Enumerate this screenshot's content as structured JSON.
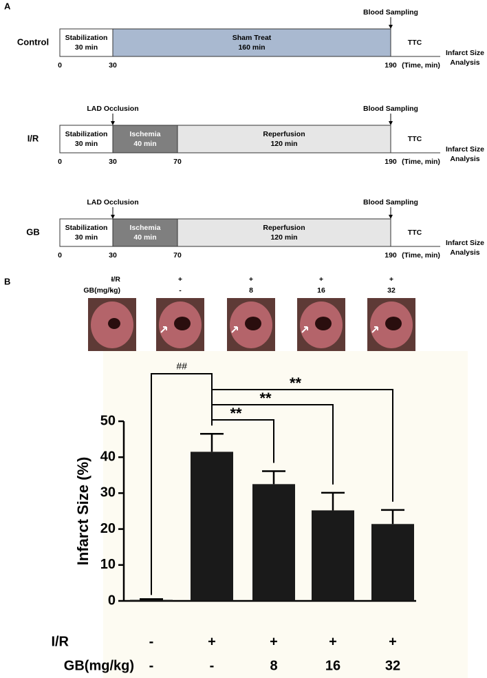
{
  "panel_a": {
    "label": "A",
    "rows": [
      {
        "label": "Control",
        "sampling": "Blood Sampling",
        "end": "TTC",
        "analysis": [
          "Infarct Size",
          "Analysis"
        ],
        "unit": "(Time, min)",
        "ticks": [
          0,
          30,
          190
        ],
        "segments": [
          {
            "name": "Stabilization",
            "duration": "30 min",
            "color": "#ffffff"
          },
          {
            "name": "Sham Treat",
            "duration": "160 min",
            "color": "#a9b9d0"
          }
        ]
      },
      {
        "label": "I/R",
        "occlusion": "LAD Occlusion",
        "sampling": "Blood Sampling",
        "end": "TTC",
        "analysis": [
          "Infarct Size",
          "Analysis"
        ],
        "unit": "(Time, min)",
        "ticks": [
          0,
          30,
          70,
          190
        ],
        "segments": [
          {
            "name": "Stabilization",
            "duration": "30 min",
            "color": "#ffffff"
          },
          {
            "name": "Ischemia",
            "duration": "40 min",
            "color": "#7f7f7f"
          },
          {
            "name": "Reperfusion",
            "duration": "120 min",
            "color": "#e6e6e6"
          }
        ]
      },
      {
        "label": "GB",
        "occlusion": "LAD Occlusion",
        "sampling": "Blood Sampling",
        "end": "TTC",
        "analysis": [
          "Infarct Size",
          "Analysis"
        ],
        "unit": "(Time, min)",
        "ticks": [
          0,
          30,
          70,
          190
        ],
        "segments": [
          {
            "name": "Stabilization",
            "duration": "30 min",
            "color": "#ffffff"
          },
          {
            "name": "Ischemia",
            "duration": "40 min",
            "color": "#7f7f7f"
          },
          {
            "name": "Reperfusion",
            "duration": "120 min",
            "color": "#e6e6e6"
          }
        ]
      }
    ]
  },
  "panel_b": {
    "label": "B"
  },
  "chart_data": {
    "type": "bar",
    "ylabel": "Infarct Size (%)",
    "conditions": [
      {
        "name": "I/R",
        "values": [
          "-",
          "+",
          "+",
          "+",
          "+"
        ]
      },
      {
        "name": "GB(mg/kg)",
        "values": [
          "-",
          "-",
          "8",
          "16",
          "32"
        ]
      }
    ],
    "values": [
      0.3,
      41.5,
      32.5,
      25.2,
      21.4
    ],
    "errors": [
      0.2,
      5,
      3.6,
      4.9,
      3.9
    ],
    "color": "#1a1a1a",
    "ylim": [
      0,
      50
    ],
    "yticks": [
      0,
      10,
      20,
      30,
      40,
      50
    ],
    "annotations": [
      {
        "label": "##",
        "from": 0,
        "to": 1
      },
      {
        "label": "**",
        "from": 1,
        "to": 2
      },
      {
        "label": "**",
        "from": 1,
        "to": 3
      },
      {
        "label": "**",
        "from": 1,
        "to": 4
      }
    ]
  }
}
